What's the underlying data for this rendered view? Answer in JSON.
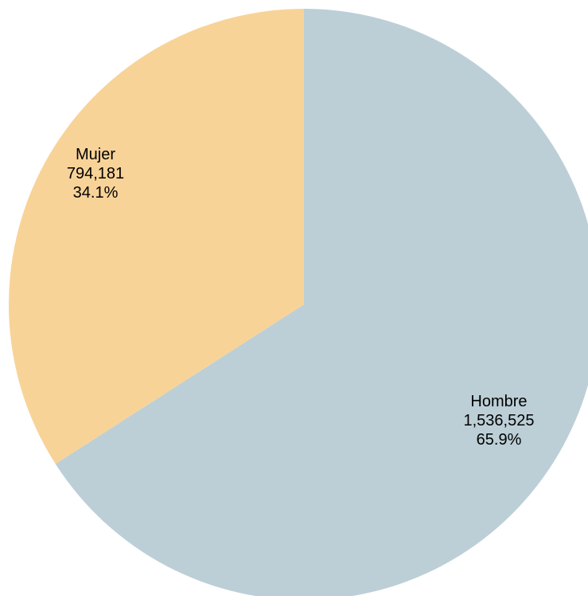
{
  "chart_data": {
    "type": "pie",
    "title": "",
    "slices": [
      {
        "name": "Hombre",
        "value": 1536525,
        "value_label": "1,536,525",
        "percent": 65.9,
        "percent_label": "65.9%",
        "color": "#BCCFD6"
      },
      {
        "name": "Mujer",
        "value": 794181,
        "value_label": "794,181",
        "percent": 34.1,
        "percent_label": "34.1%",
        "color": "#F8D398"
      }
    ],
    "start_angle": "12 o'clock",
    "direction": "clockwise",
    "legend": "none"
  }
}
